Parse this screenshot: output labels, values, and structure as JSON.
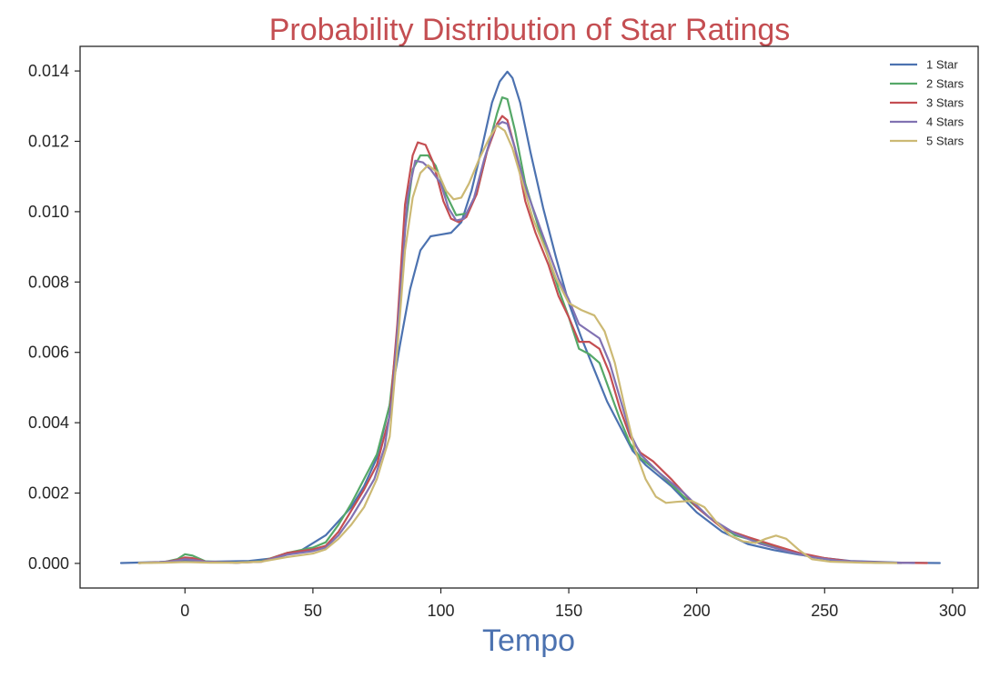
{
  "colors": {
    "title": "#c44e52",
    "xlabel": "#4c72b0",
    "axis": "#262626",
    "background": "#ffffff"
  },
  "chart_data": {
    "type": "line",
    "title": "Probability Distribution of Star Ratings",
    "xlabel": "Tempo",
    "ylabel": "",
    "xlim": [
      -41,
      310
    ],
    "ylim": [
      -0.0007,
      0.0147
    ],
    "xticks": [
      0,
      50,
      100,
      150,
      200,
      250,
      300
    ],
    "xtick_labels": [
      "0",
      "50",
      "100",
      "150",
      "200",
      "250",
      "300"
    ],
    "yticks": [
      0.0,
      0.002,
      0.004,
      0.006,
      0.008,
      0.01,
      0.012,
      0.014
    ],
    "ytick_labels": [
      "0.000",
      "0.002",
      "0.004",
      "0.006",
      "0.008",
      "0.010",
      "0.012",
      "0.014"
    ],
    "grid": false,
    "legend_position": "top-right",
    "series": [
      {
        "name": "1 Star",
        "color": "#4c72b0",
        "points": [
          [
            -25,
            1e-05
          ],
          [
            -10,
            4e-05
          ],
          [
            0,
            8e-05
          ],
          [
            10,
            5e-05
          ],
          [
            25,
            7e-05
          ],
          [
            35,
            0.00015
          ],
          [
            45,
            0.00035
          ],
          [
            55,
            0.0008
          ],
          [
            65,
            0.0016
          ],
          [
            70,
            0.0022
          ],
          [
            75,
            0.003
          ],
          [
            80,
            0.0045
          ],
          [
            84,
            0.0062
          ],
          [
            88,
            0.0078
          ],
          [
            92,
            0.0089
          ],
          [
            96,
            0.0093
          ],
          [
            100,
            0.00935
          ],
          [
            104,
            0.0094
          ],
          [
            108,
            0.0097
          ],
          [
            112,
            0.0106
          ],
          [
            116,
            0.0118
          ],
          [
            120,
            0.0131
          ],
          [
            123,
            0.0137
          ],
          [
            126,
            0.01398
          ],
          [
            128,
            0.0138
          ],
          [
            131,
            0.0131
          ],
          [
            135,
            0.0117
          ],
          [
            140,
            0.0101
          ],
          [
            145,
            0.0087
          ],
          [
            150,
            0.0074
          ],
          [
            155,
            0.0064
          ],
          [
            160,
            0.0055
          ],
          [
            165,
            0.0046
          ],
          [
            170,
            0.0039
          ],
          [
            175,
            0.0032
          ],
          [
            180,
            0.0028
          ],
          [
            190,
            0.0022
          ],
          [
            200,
            0.00145
          ],
          [
            210,
            0.0009
          ],
          [
            220,
            0.00055
          ],
          [
            230,
            0.00038
          ],
          [
            240,
            0.00025
          ],
          [
            250,
            0.00015
          ],
          [
            260,
            7e-05
          ],
          [
            280,
            2e-05
          ],
          [
            295,
            1e-05
          ]
        ]
      },
      {
        "name": "2 Stars",
        "color": "#55a868",
        "points": [
          [
            -18,
            1e-05
          ],
          [
            -8,
            4e-05
          ],
          [
            -3,
            0.00012
          ],
          [
            0,
            0.00026
          ],
          [
            3,
            0.00022
          ],
          [
            8,
            6e-05
          ],
          [
            20,
            2e-05
          ],
          [
            30,
            6e-05
          ],
          [
            40,
            0.0003
          ],
          [
            50,
            0.00045
          ],
          [
            55,
            0.0006
          ],
          [
            60,
            0.0011
          ],
          [
            65,
            0.0017
          ],
          [
            70,
            0.0024
          ],
          [
            75,
            0.0031
          ],
          [
            80,
            0.0045
          ],
          [
            83,
            0.0065
          ],
          [
            86,
            0.0095
          ],
          [
            89,
            0.0112
          ],
          [
            92,
            0.0116
          ],
          [
            95,
            0.0116
          ],
          [
            98,
            0.0113
          ],
          [
            102,
            0.0105
          ],
          [
            106,
            0.0099
          ],
          [
            110,
            0.00995
          ],
          [
            114,
            0.0105
          ],
          [
            118,
            0.0117
          ],
          [
            122,
            0.0128
          ],
          [
            124,
            0.01325
          ],
          [
            126,
            0.0132
          ],
          [
            129,
            0.0123
          ],
          [
            133,
            0.0108
          ],
          [
            138,
            0.0096
          ],
          [
            142,
            0.0087
          ],
          [
            146,
            0.0078
          ],
          [
            150,
            0.007
          ],
          [
            154,
            0.0061
          ],
          [
            158,
            0.00595
          ],
          [
            162,
            0.0057
          ],
          [
            166,
            0.0049
          ],
          [
            170,
            0.0041
          ],
          [
            174,
            0.0034
          ],
          [
            178,
            0.003
          ],
          [
            185,
            0.0026
          ],
          [
            195,
            0.0019
          ],
          [
            205,
            0.0013
          ],
          [
            215,
            0.0008
          ],
          [
            225,
            0.0006
          ],
          [
            235,
            0.00035
          ],
          [
            245,
            0.00018
          ],
          [
            255,
            7e-05
          ],
          [
            270,
            2e-05
          ],
          [
            280,
            1e-05
          ]
        ]
      },
      {
        "name": "3 Stars",
        "color": "#c44e52",
        "points": [
          [
            -18,
            1e-05
          ],
          [
            -8,
            4e-05
          ],
          [
            -3,
            0.0001
          ],
          [
            0,
            0.00017
          ],
          [
            3,
            0.00015
          ],
          [
            8,
            5e-05
          ],
          [
            20,
            2e-05
          ],
          [
            30,
            5e-05
          ],
          [
            40,
            0.0003
          ],
          [
            50,
            0.0004
          ],
          [
            55,
            0.0005
          ],
          [
            60,
            0.0009
          ],
          [
            65,
            0.0015
          ],
          [
            70,
            0.0021
          ],
          [
            75,
            0.0028
          ],
          [
            80,
            0.0042
          ],
          [
            83,
            0.0068
          ],
          [
            86,
            0.0102
          ],
          [
            89,
            0.0116
          ],
          [
            91,
            0.01197
          ],
          [
            94,
            0.0119
          ],
          [
            97,
            0.0114
          ],
          [
            101,
            0.0103
          ],
          [
            104,
            0.0098
          ],
          [
            107,
            0.0097
          ],
          [
            110,
            0.00985
          ],
          [
            114,
            0.0105
          ],
          [
            118,
            0.0117
          ],
          [
            122,
            0.0125
          ],
          [
            124,
            0.01272
          ],
          [
            126,
            0.0126
          ],
          [
            129,
            0.0118
          ],
          [
            133,
            0.0103
          ],
          [
            137,
            0.0094
          ],
          [
            142,
            0.0085
          ],
          [
            146,
            0.0076
          ],
          [
            150,
            0.007
          ],
          [
            154,
            0.0063
          ],
          [
            158,
            0.0063
          ],
          [
            162,
            0.0061
          ],
          [
            166,
            0.0054
          ],
          [
            170,
            0.0044
          ],
          [
            174,
            0.0036
          ],
          [
            178,
            0.00315
          ],
          [
            183,
            0.0029
          ],
          [
            190,
            0.0024
          ],
          [
            200,
            0.0016
          ],
          [
            210,
            0.001
          ],
          [
            220,
            0.00075
          ],
          [
            230,
            0.00052
          ],
          [
            240,
            0.0003
          ],
          [
            250,
            0.00015
          ],
          [
            260,
            6e-05
          ],
          [
            275,
            2e-05
          ],
          [
            290,
            1e-05
          ]
        ]
      },
      {
        "name": "4 Stars",
        "color": "#8172b2",
        "points": [
          [
            -18,
            1e-05
          ],
          [
            -8,
            4e-05
          ],
          [
            -3,
            8e-05
          ],
          [
            0,
            0.00012
          ],
          [
            3,
            0.0001
          ],
          [
            8,
            5e-05
          ],
          [
            20,
            2e-05
          ],
          [
            30,
            5e-05
          ],
          [
            40,
            0.00025
          ],
          [
            50,
            0.00035
          ],
          [
            55,
            0.00045
          ],
          [
            60,
            0.0008
          ],
          [
            65,
            0.0013
          ],
          [
            70,
            0.0019
          ],
          [
            74,
            0.0024
          ],
          [
            78,
            0.0033
          ],
          [
            81,
            0.0047
          ],
          [
            84,
            0.0075
          ],
          [
            87,
            0.0104
          ],
          [
            90,
            0.01145
          ],
          [
            93,
            0.0114
          ],
          [
            96,
            0.0112
          ],
          [
            100,
            0.0108
          ],
          [
            103,
            0.0101
          ],
          [
            106,
            0.00975
          ],
          [
            109,
            0.0098
          ],
          [
            113,
            0.0104
          ],
          [
            117,
            0.0115
          ],
          [
            121,
            0.0124
          ],
          [
            124,
            0.01255
          ],
          [
            126,
            0.0125
          ],
          [
            129,
            0.0118
          ],
          [
            133,
            0.0107
          ],
          [
            137,
            0.0099
          ],
          [
            141,
            0.0091
          ],
          [
            146,
            0.0081
          ],
          [
            150,
            0.0075
          ],
          [
            154,
            0.0068
          ],
          [
            158,
            0.0066
          ],
          [
            162,
            0.0064
          ],
          [
            166,
            0.0057
          ],
          [
            170,
            0.0047
          ],
          [
            174,
            0.0037
          ],
          [
            178,
            0.0031
          ],
          [
            185,
            0.0026
          ],
          [
            195,
            0.002
          ],
          [
            205,
            0.0013
          ],
          [
            215,
            0.00085
          ],
          [
            225,
            0.00055
          ],
          [
            235,
            0.00035
          ],
          [
            245,
            0.00018
          ],
          [
            255,
            8e-05
          ],
          [
            270,
            3e-05
          ],
          [
            285,
            1e-05
          ]
        ]
      },
      {
        "name": "5 Stars",
        "color": "#ccb974",
        "points": [
          [
            -18,
            1e-05
          ],
          [
            -8,
            2e-05
          ],
          [
            0,
            4e-05
          ],
          [
            10,
            2e-05
          ],
          [
            20,
            2e-05
          ],
          [
            30,
            5e-05
          ],
          [
            40,
            0.00018
          ],
          [
            50,
            0.00028
          ],
          [
            55,
            0.0004
          ],
          [
            60,
            0.0007
          ],
          [
            65,
            0.0011
          ],
          [
            70,
            0.0016
          ],
          [
            75,
            0.0024
          ],
          [
            80,
            0.0036
          ],
          [
            83,
            0.0061
          ],
          [
            86,
            0.0089
          ],
          [
            89,
            0.0104
          ],
          [
            92,
            0.0111
          ],
          [
            95,
            0.01132
          ],
          [
            99,
            0.0111
          ],
          [
            102,
            0.0106
          ],
          [
            105,
            0.01035
          ],
          [
            108,
            0.0104
          ],
          [
            111,
            0.0108
          ],
          [
            115,
            0.0115
          ],
          [
            119,
            0.0121
          ],
          [
            122,
            0.01245
          ],
          [
            125,
            0.0123
          ],
          [
            128,
            0.0118
          ],
          [
            132,
            0.0108
          ],
          [
            136,
            0.0098
          ],
          [
            141,
            0.0089
          ],
          [
            145,
            0.0081
          ],
          [
            150,
            0.0074
          ],
          [
            155,
            0.0072
          ],
          [
            160,
            0.00705
          ],
          [
            164,
            0.0066
          ],
          [
            168,
            0.0057
          ],
          [
            172,
            0.0044
          ],
          [
            176,
            0.0032
          ],
          [
            180,
            0.0024
          ],
          [
            184,
            0.0019
          ],
          [
            188,
            0.00172
          ],
          [
            192,
            0.00175
          ],
          [
            198,
            0.00178
          ],
          [
            203,
            0.0016
          ],
          [
            208,
            0.00115
          ],
          [
            213,
            0.0008
          ],
          [
            218,
            0.00063
          ],
          [
            223,
            0.00058
          ],
          [
            227,
            0.0007
          ],
          [
            231,
            0.00079
          ],
          [
            235,
            0.0007
          ],
          [
            240,
            0.00038
          ],
          [
            245,
            0.00012
          ],
          [
            252,
            5e-05
          ],
          [
            265,
            2e-05
          ],
          [
            278,
            1e-05
          ]
        ]
      }
    ]
  }
}
